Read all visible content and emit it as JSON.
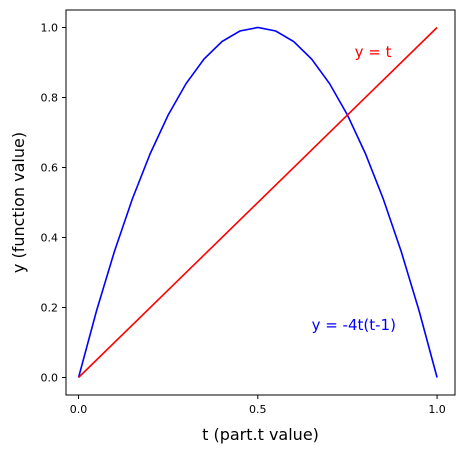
{
  "chart_data": {
    "type": "line",
    "xlabel": "t (part.t value)",
    "ylabel": "y (function value)",
    "xlim": [
      -0.035,
      1.05
    ],
    "ylim": [
      -0.05,
      1.05
    ],
    "x_ticks": [
      0.0,
      0.5,
      1.0
    ],
    "x_tick_labels": [
      "0.0",
      "0.5",
      "1.0"
    ],
    "y_ticks": [
      0.0,
      0.2,
      0.4,
      0.6,
      0.8,
      1.0
    ],
    "y_tick_labels": [
      "0.0",
      "0.2",
      "0.4",
      "0.6",
      "0.8",
      "1.0"
    ],
    "grid": false,
    "legend": "none",
    "series": [
      {
        "color": "#0000ff",
        "x": [
          0.0,
          0.05,
          0.1,
          0.15,
          0.2,
          0.25,
          0.3,
          0.35,
          0.4,
          0.45,
          0.5,
          0.55,
          0.6,
          0.65,
          0.7,
          0.75,
          0.8,
          0.85,
          0.9,
          0.95,
          1.0
        ],
        "y": [
          0.0,
          0.19,
          0.36,
          0.51,
          0.64,
          0.75,
          0.84,
          0.91,
          0.96,
          0.99,
          1.0,
          0.99,
          0.96,
          0.91,
          0.84,
          0.75,
          0.64,
          0.51,
          0.36,
          0.19,
          0.0
        ]
      },
      {
        "color": "#ff0000",
        "x": [
          0.0,
          1.0
        ],
        "y": [
          0.0,
          1.0
        ]
      }
    ],
    "annotations": [
      {
        "text": "y = t",
        "x": 0.77,
        "y": 0.93,
        "color": "#ff0000"
      },
      {
        "text": "y = -4t(t-1)",
        "x": 0.65,
        "y": 0.15,
        "color": "#0000ff"
      }
    ]
  }
}
